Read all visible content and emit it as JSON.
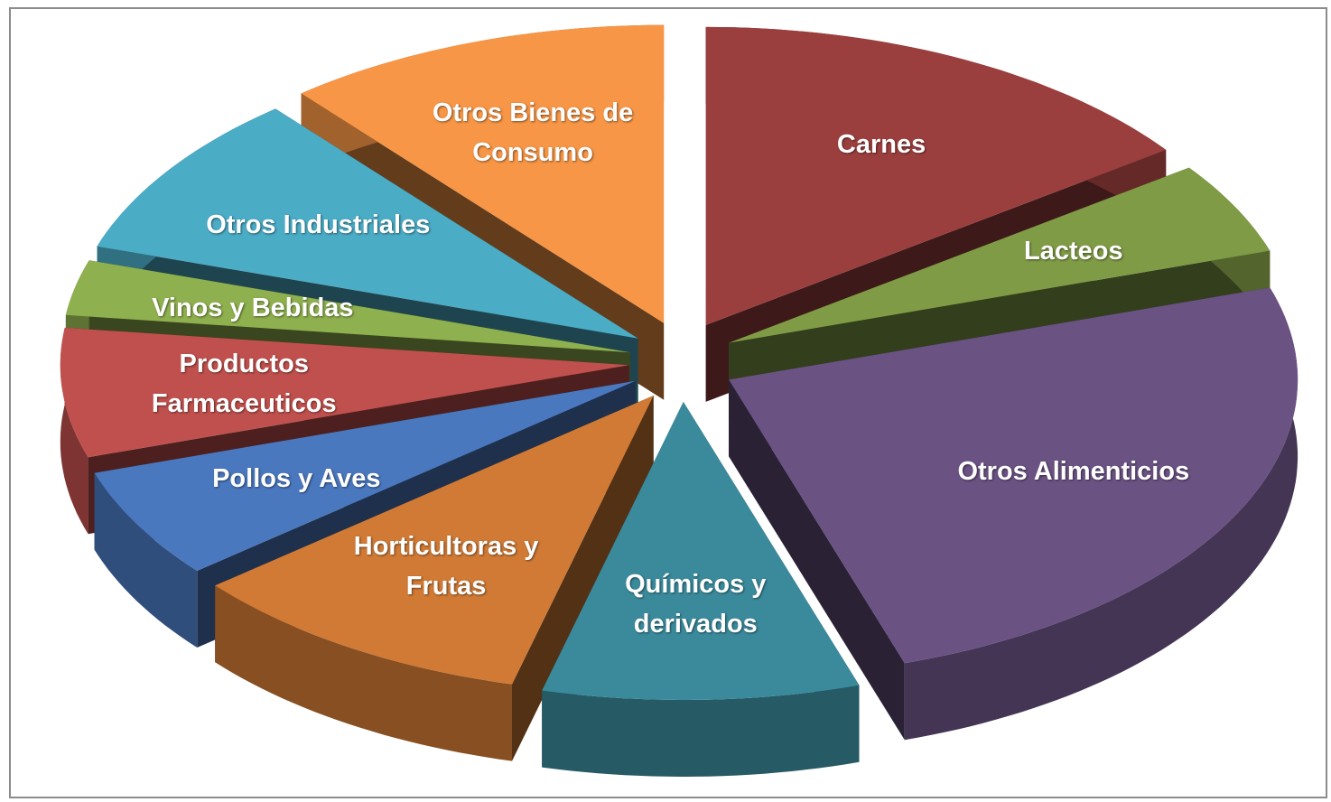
{
  "chart_data": {
    "type": "pie",
    "categories": [
      "Carnes",
      "Lacteos",
      "Otros Alimenticios",
      "Químicos y derivados",
      "Horticultoras y Frutas",
      "Pollos y Aves",
      "Productos Farmaceuticos",
      "Vinos y Bebidas",
      "Otros Industriales",
      "Otros Bienes de Consumo"
    ],
    "values": [
      15,
      5,
      25,
      9,
      10,
      6,
      7,
      3,
      9,
      11
    ],
    "colors": [
      "#9b3f3e",
      "#7f9b45",
      "#6a5283",
      "#3a8a9c",
      "#d07a35",
      "#4a78bf",
      "#c0504d",
      "#8fb04e",
      "#4bacc6",
      "#f79646"
    ],
    "exploded": true,
    "three_d": true
  }
}
